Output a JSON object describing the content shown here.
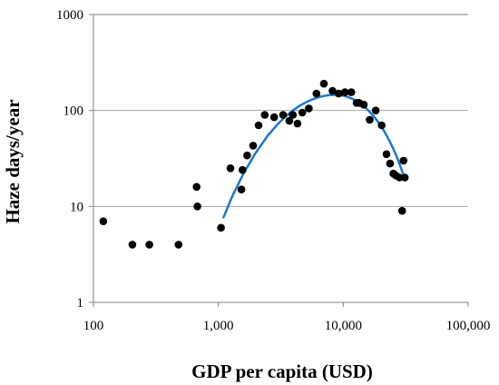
{
  "chart_data": {
    "type": "scatter",
    "title": "",
    "xlabel": "GDP per capita (USD)",
    "ylabel": "Haze days/year",
    "x_scale": "log",
    "y_scale": "log",
    "xlim": [
      100,
      100000
    ],
    "ylim": [
      1,
      1000
    ],
    "x_tick_labels": [
      "100",
      "1,000",
      "10,000",
      "100,000"
    ],
    "y_tick_labels": [
      "1",
      "10",
      "100",
      "1000"
    ],
    "grid": "horizontal",
    "legend": "none",
    "colors": {
      "points": "#000000",
      "fit_line": "#1f77c4",
      "grid": "#a6a6a6",
      "axis": "#808080"
    },
    "series": [
      {
        "type": "scatter",
        "x": [
          120,
          205,
          280,
          480,
          670,
          680,
          1050,
          1250,
          1530,
          1560,
          1700,
          1900,
          2100,
          2350,
          2800,
          3300,
          3700,
          3950,
          4300,
          4700,
          5300,
          6100,
          7000,
          8200,
          9200,
          10300,
          11600,
          12800,
          13400,
          14600,
          16300,
          18200,
          20300,
          22200,
          23700,
          25200,
          26400,
          28200,
          29600,
          30400,
          31100
        ],
        "y": [
          7,
          4,
          4,
          4,
          16,
          10,
          6,
          25,
          15,
          24,
          34,
          43,
          70,
          90,
          85,
          90,
          78,
          90,
          73,
          95,
          105,
          150,
          190,
          160,
          150,
          155,
          155,
          120,
          120,
          115,
          80,
          100,
          70,
          35,
          28,
          22,
          21,
          20,
          9,
          30,
          20
        ]
      },
      {
        "type": "line",
        "x": [
          1100,
          1300,
          1600,
          2000,
          2500,
          3000,
          3500,
          4000,
          4500,
          5000,
          5500,
          6000,
          6500,
          7000,
          7500,
          8000,
          9000,
          10000,
          11000,
          12000,
          13000,
          14000,
          15000,
          16000,
          18000,
          20000,
          22000,
          24000,
          26000,
          28000,
          30000
        ],
        "y": [
          7.7,
          13.0,
          22.4,
          36.5,
          55.1,
          72.5,
          88.1,
          101.4,
          112.4,
          121.4,
          128.5,
          134.1,
          138.5,
          141.7,
          143.9,
          145.2,
          145.7,
          142.8,
          137.6,
          130.9,
          123.4,
          115.5,
          107.3,
          99.2,
          83.6,
          69.2,
          56.5,
          45.4,
          36.1,
          28.4,
          22.2
        ]
      }
    ]
  }
}
